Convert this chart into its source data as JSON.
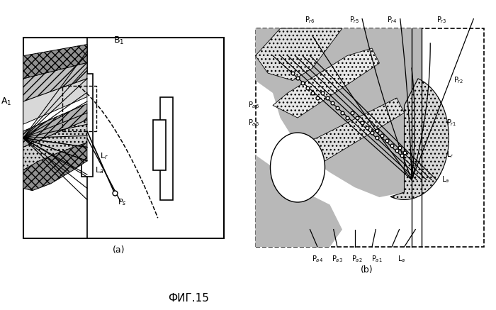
{
  "fig_width": 7.0,
  "fig_height": 4.37,
  "dpi": 100,
  "background_color": "#ffffff",
  "title": "ФИГ.15",
  "title_fontsize": 11,
  "label_fontsize": 9,
  "sub_label_fontsize": 8,
  "panel_a_label": "(a)",
  "panel_b_label": "(b)"
}
